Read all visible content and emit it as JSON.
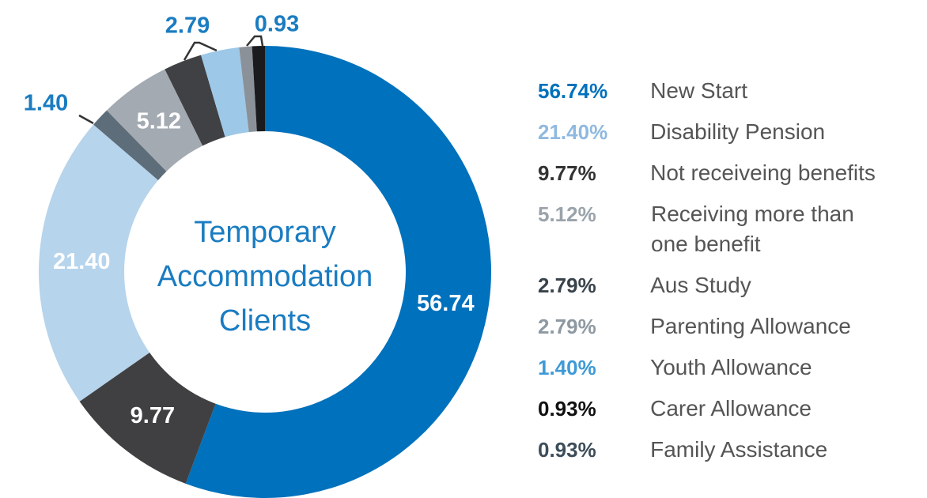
{
  "chart_data": {
    "type": "donut",
    "center_text": [
      "Temporary",
      "Accommodation",
      "Clients"
    ],
    "categories": [
      "New Start",
      "Not receiveing benefits",
      "Disability Pension",
      "Youth Allowance",
      "Receiving more than one benefit",
      "Aus Study",
      "Parenting Allowance",
      "Family Assistance",
      "Carer Allowance"
    ],
    "values": [
      56.74,
      9.77,
      21.4,
      1.4,
      5.12,
      2.79,
      2.79,
      0.93,
      0.93
    ],
    "value_labels": [
      "56.74",
      "9.77",
      "21.40",
      "1.40",
      "5.12",
      "2.79",
      null,
      "0.93",
      null
    ],
    "legend_labels": [
      "56.74%",
      "9.77%",
      "21.40%",
      "1.40%",
      "5.12%",
      "2.79%",
      "2.79%",
      "0.93%",
      "0.93%"
    ],
    "colors": [
      "#0071bc",
      "#404042",
      "#b6d4ec",
      "#5d6d79",
      "#a3aab1",
      "#3f4144",
      "#9dc8e8",
      "#8a9199",
      "#1b1b1d"
    ],
    "legend_colors": [
      "#0071bc",
      "#333333",
      "#8fb9e0",
      "#3e9ad6",
      "#9aa3ab",
      "#39434b",
      "#8e99a2",
      "#3d4d5a",
      "#111111"
    ],
    "legend_order": [
      0,
      2,
      1,
      4,
      5,
      6,
      3,
      8,
      7
    ]
  }
}
